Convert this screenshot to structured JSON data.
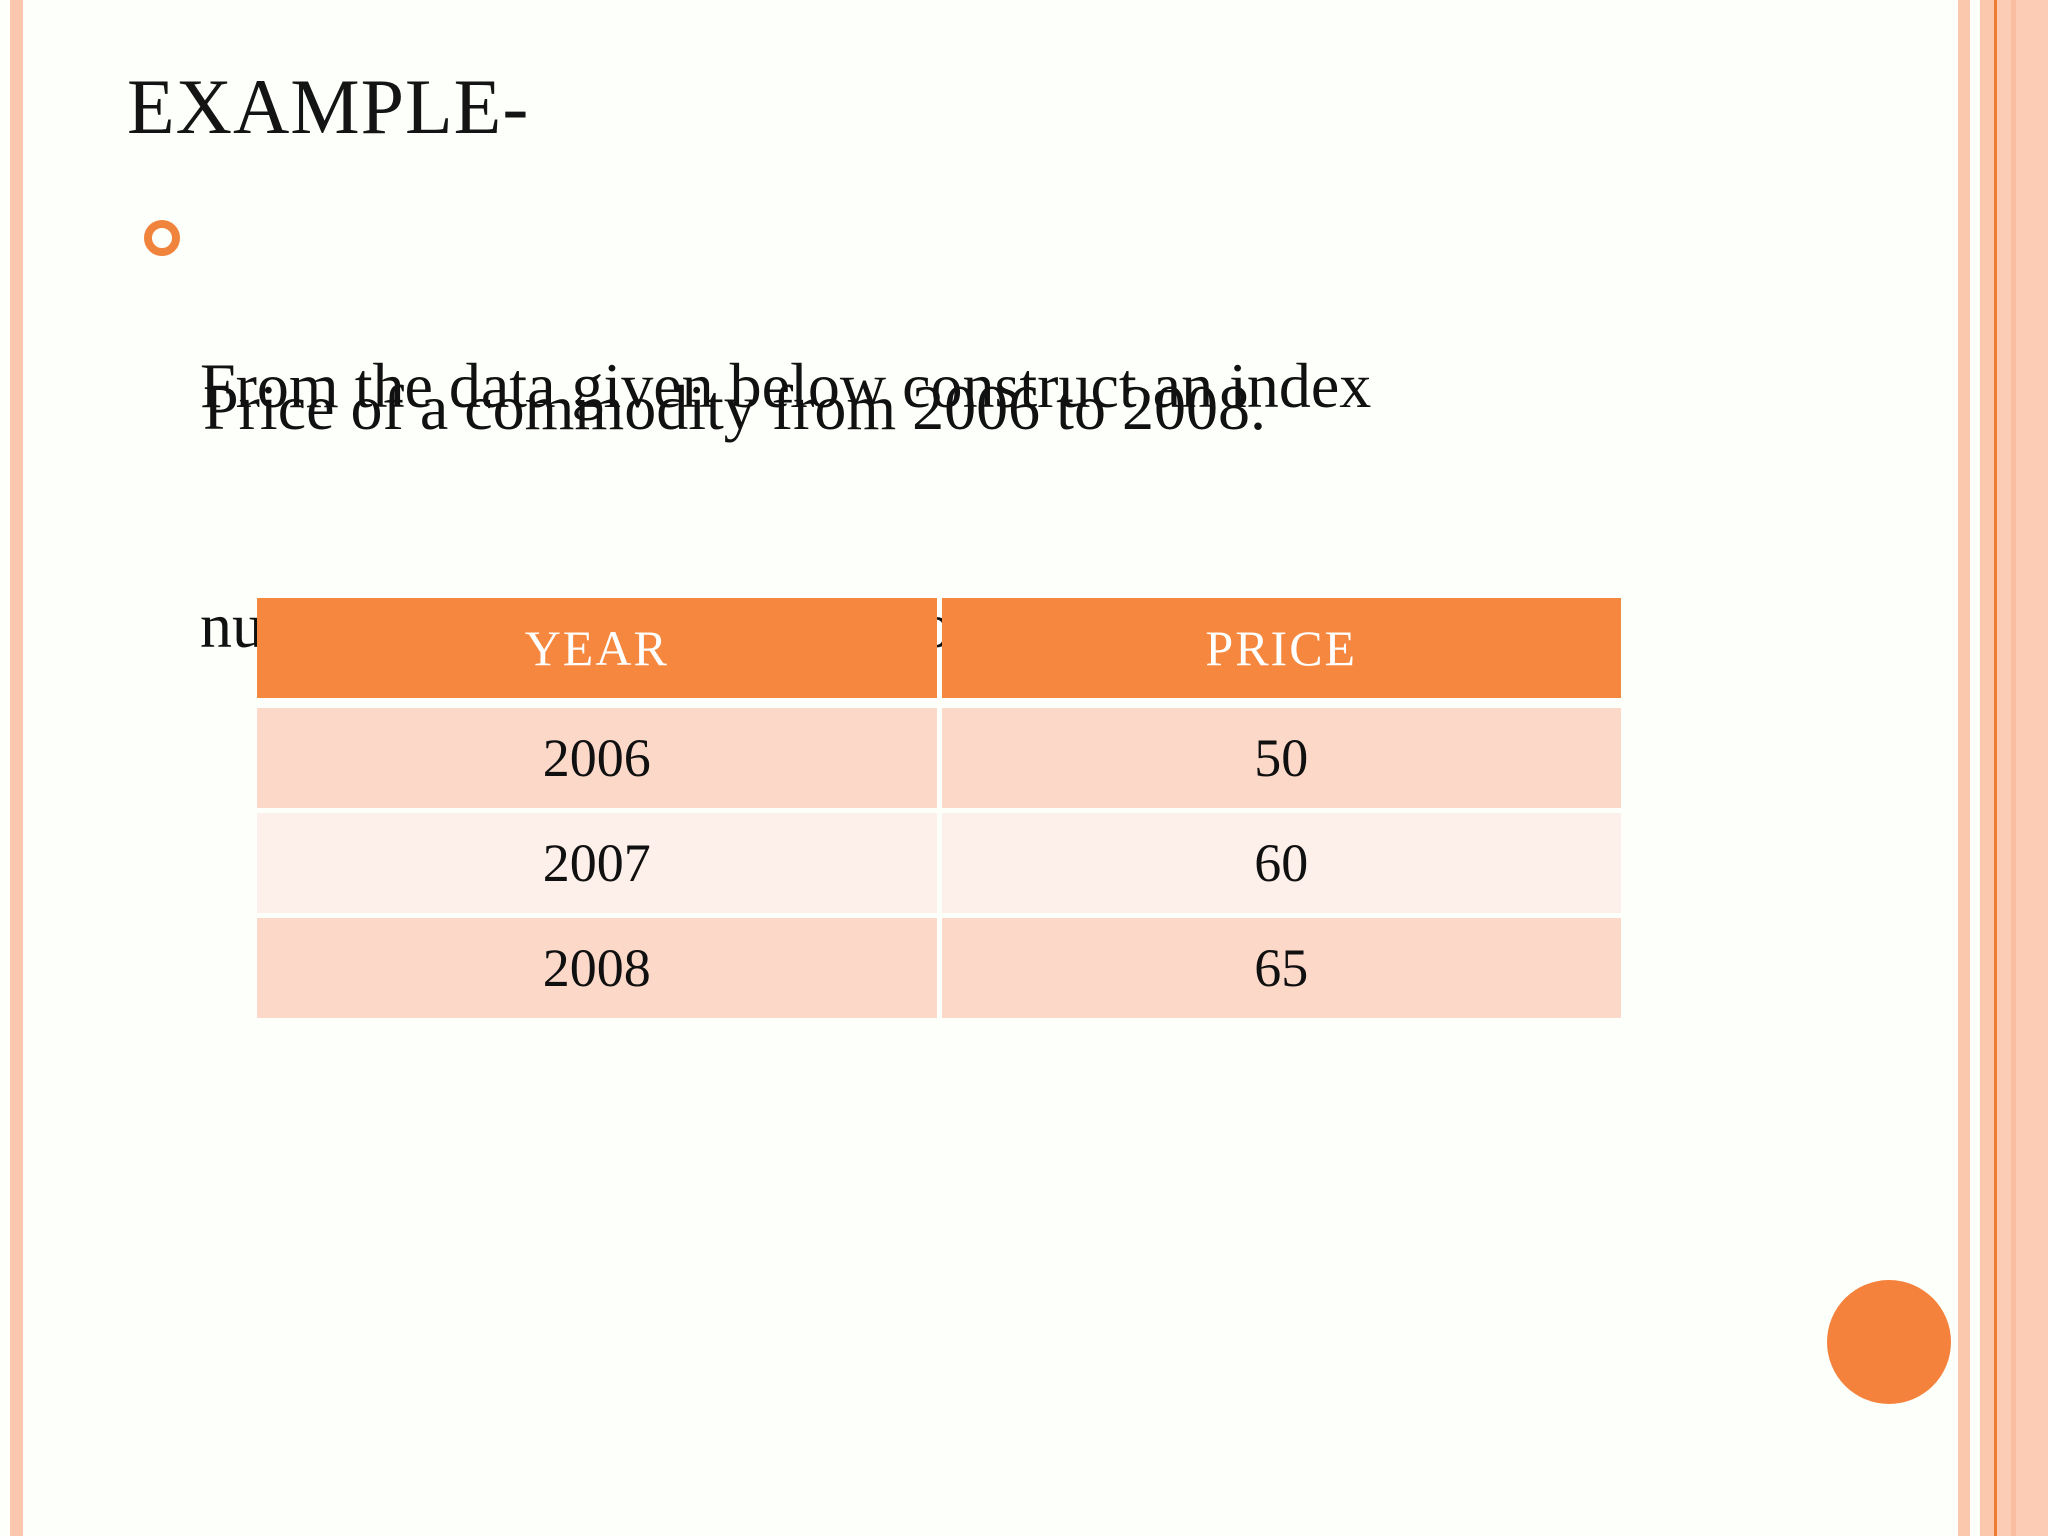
{
  "slide": {
    "title": "EXAMPLE-",
    "bullet": {
      "lines": [
        "From the data given below construct an index",
        "number  by chain base method."
      ]
    },
    "subtext": "Price of a commodity from 2006 to 2008.",
    "table": {
      "headers": [
        "YEAR",
        "PRICE"
      ],
      "rows": [
        [
          "2006",
          "50"
        ],
        [
          "2007",
          "60"
        ],
        [
          "2008",
          "65"
        ]
      ]
    },
    "colors": {
      "accent_header": "#F6873E",
      "row_odd": "#FBD8C8",
      "row_even": "#FDF0EB",
      "edge_stripe": "#FBC8AD",
      "edge_stripe_dark_line": "#EE7D31",
      "bullet_ring": "#F0843C",
      "corner_circle": "#F5823C",
      "background": "#FDFFFA",
      "text": "#111111",
      "header_text": "#FFFFFF"
    }
  }
}
